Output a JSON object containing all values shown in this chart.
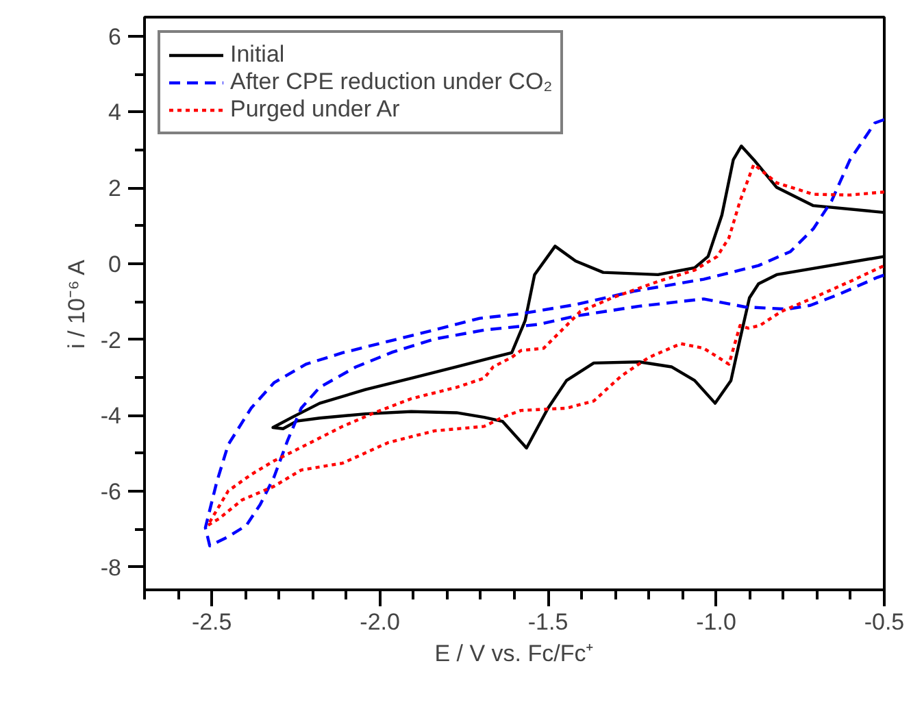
{
  "chart_data": {
    "type": "line",
    "xlabel": "E / V vs. Fc/Fc⁺",
    "ylabel": "i / 10⁻⁶ A",
    "xlim": [
      -2.7,
      -0.5
    ],
    "ylim": [
      -8.6,
      6.5
    ],
    "xticks": [
      {
        "value": -2.7,
        "label": null
      },
      {
        "value": -2.6,
        "label": null
      },
      {
        "value": -2.5,
        "label": "-2.5"
      },
      {
        "value": -2.4,
        "label": null
      },
      {
        "value": -2.3,
        "label": null
      },
      {
        "value": -2.2,
        "label": null
      },
      {
        "value": -2.1,
        "label": null
      },
      {
        "value": -2.0,
        "label": "-2.0"
      },
      {
        "value": -1.9,
        "label": null
      },
      {
        "value": -1.8,
        "label": null
      },
      {
        "value": -1.7,
        "label": null
      },
      {
        "value": -1.6,
        "label": null
      },
      {
        "value": -1.5,
        "label": "-1.5"
      },
      {
        "value": -1.4,
        "label": null
      },
      {
        "value": -1.3,
        "label": null
      },
      {
        "value": -1.2,
        "label": null
      },
      {
        "value": -1.1,
        "label": null
      },
      {
        "value": -1.0,
        "label": "-1.0"
      },
      {
        "value": -0.9,
        "label": null
      },
      {
        "value": -0.8,
        "label": null
      },
      {
        "value": -0.7,
        "label": null
      },
      {
        "value": -0.6,
        "label": null
      },
      {
        "value": -0.5,
        "label": "-0.5"
      }
    ],
    "yticks": [
      -8,
      {
        "value": -7,
        "label": null
      },
      -6,
      {
        "value": -5,
        "label": null
      },
      -4,
      {
        "value": -3,
        "label": null
      },
      -2,
      {
        "value": -1,
        "label": null
      },
      0,
      {
        "value": 1,
        "label": null
      },
      2,
      {
        "value": 3,
        "label": null
      },
      4,
      {
        "value": 5,
        "label": null
      },
      6
    ],
    "grid": false,
    "legend": "top left",
    "marker": "none",
    "series": [
      {
        "name": "Initial",
        "color": "#000000",
        "line_style": "solid",
        "x": [
          -0.5,
          -0.82,
          -0.874,
          -0.901,
          -0.929,
          -0.956,
          -1.003,
          -1.064,
          -1.133,
          -1.228,
          -1.364,
          -1.445,
          -1.5,
          -1.564,
          -1.635,
          -1.69,
          -1.772,
          -1.907,
          -2.043,
          -2.179,
          -2.247,
          -2.288,
          -2.318,
          -2.261,
          -2.179,
          -2.043,
          -1.907,
          -1.772,
          -1.663,
          -1.608,
          -1.568,
          -1.54,
          -1.479,
          -1.418,
          -1.336,
          -1.173,
          -1.064,
          -1.024,
          -0.983,
          -0.949,
          -0.925,
          -0.888,
          -0.82,
          -0.711,
          -0.5
        ],
        "values": [
          0.19,
          -0.29,
          -0.53,
          -0.9,
          -1.99,
          -3.08,
          -3.68,
          -3.08,
          -2.72,
          -2.59,
          -2.62,
          -3.08,
          -3.81,
          -4.86,
          -4.16,
          -4.05,
          -3.93,
          -3.9,
          -3.96,
          -4.07,
          -4.15,
          -4.35,
          -4.32,
          -4.05,
          -3.68,
          -3.32,
          -3.02,
          -2.72,
          -2.47,
          -2.35,
          -1.5,
          -0.29,
          0.46,
          0.07,
          -0.23,
          -0.29,
          -0.11,
          0.19,
          1.28,
          2.74,
          3.1,
          2.74,
          2.01,
          1.53,
          1.35
        ]
      },
      {
        "name": "After CPE reduction under CO₂",
        "color": "#0000ff",
        "line_style": "dashed",
        "x": [
          -0.5,
          -0.528,
          -0.602,
          -0.657,
          -0.711,
          -0.779,
          -0.874,
          -1.037,
          -1.241,
          -1.418,
          -1.581,
          -1.703,
          -1.839,
          -1.976,
          -2.111,
          -2.22,
          -2.315,
          -2.383,
          -2.451,
          -2.485,
          -2.519,
          -2.506,
          -2.451,
          -2.397,
          -2.356,
          -2.315,
          -2.274,
          -2.234,
          -2.179,
          -2.071,
          -1.962,
          -1.839,
          -1.69,
          -1.527,
          -1.418,
          -1.228,
          -1.037,
          -0.915,
          -0.79,
          -0.72,
          -0.63,
          -0.52,
          -0.5
        ],
        "values": [
          3.8,
          3.71,
          2.74,
          1.65,
          0.92,
          0.32,
          -0.05,
          -0.41,
          -0.72,
          -1.08,
          -1.32,
          -1.44,
          -1.75,
          -2.05,
          -2.35,
          -2.65,
          -3.14,
          -3.81,
          -4.77,
          -5.75,
          -6.96,
          -7.44,
          -7.2,
          -6.9,
          -6.35,
          -5.63,
          -4.65,
          -3.81,
          -3.26,
          -2.72,
          -2.33,
          -1.99,
          -1.75,
          -1.6,
          -1.38,
          -1.12,
          -0.93,
          -1.14,
          -1.2,
          -1.1,
          -0.79,
          -0.36,
          -0.3
        ]
      },
      {
        "name": "Purged under Ar",
        "color": "#ff0000",
        "line_style": "dotted",
        "x": [
          -0.5,
          -0.602,
          -0.711,
          -0.82,
          -0.888,
          -0.929,
          -0.962,
          -0.997,
          -1.064,
          -1.173,
          -1.309,
          -1.404,
          -1.445,
          -1.513,
          -1.581,
          -1.608,
          -1.663,
          -1.69,
          -1.772,
          -1.907,
          -2.016,
          -2.111,
          -2.247,
          -2.315,
          -2.383,
          -2.451,
          -2.512,
          -2.478,
          -2.41,
          -2.315,
          -2.234,
          -2.111,
          -1.976,
          -1.839,
          -1.69,
          -1.635,
          -1.581,
          -1.445,
          -1.364,
          -1.282,
          -1.2,
          -1.105,
          -1.037,
          -0.962,
          -0.929,
          -0.905,
          -0.87,
          -0.806,
          -0.711,
          -0.602,
          -0.5
        ],
        "values": [
          1.89,
          1.81,
          1.83,
          2.13,
          2.62,
          1.65,
          0.68,
          0.19,
          -0.17,
          -0.47,
          -0.9,
          -1.26,
          -1.63,
          -2.23,
          -2.29,
          -2.47,
          -2.72,
          -3.02,
          -3.26,
          -3.56,
          -3.93,
          -4.29,
          -4.9,
          -5.2,
          -5.56,
          -5.99,
          -6.9,
          -6.72,
          -6.23,
          -5.87,
          -5.44,
          -5.26,
          -4.72,
          -4.41,
          -4.29,
          -4.05,
          -3.87,
          -3.81,
          -3.62,
          -2.96,
          -2.47,
          -2.11,
          -2.23,
          -2.65,
          -1.63,
          -1.7,
          -1.63,
          -1.26,
          -0.9,
          -0.47,
          -0.05
        ]
      }
    ]
  }
}
